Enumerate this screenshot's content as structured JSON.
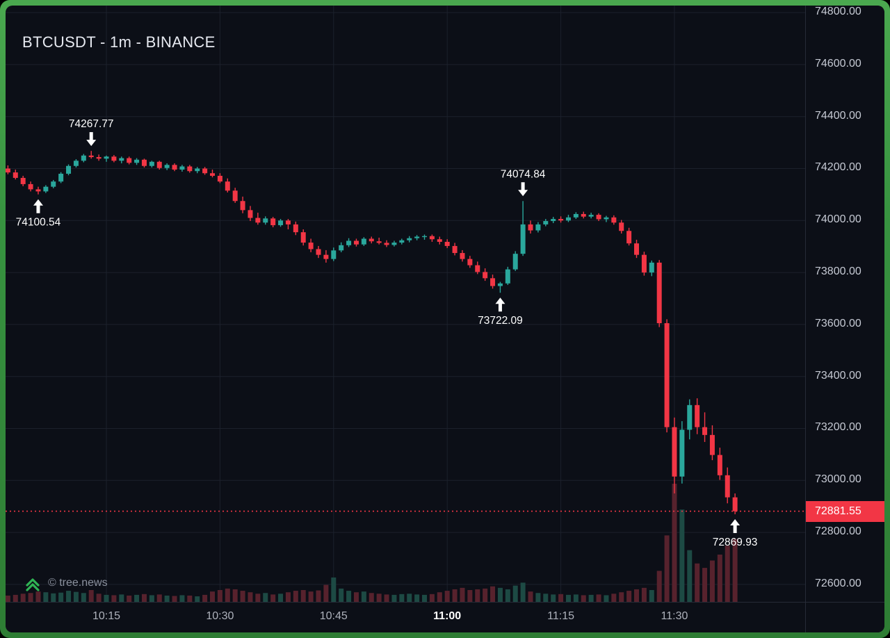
{
  "meta": {
    "title": "BTCUSDT - 1m - BINANCE"
  },
  "watermark": {
    "label": "© tree.news",
    "icon": "double-chevron-up-icon",
    "icon_color": "#2fb454"
  },
  "colors": {
    "up": "#2aa79c",
    "down": "#f23645",
    "bg": "#0c0f17",
    "grid": "#1c212c",
    "axis_text": "#c6cad4",
    "price_line": "#f23645",
    "annotation": "#ffffff",
    "volume_up": "#1d4a44",
    "volume_down": "#57222d",
    "badge_bg": "#f23645"
  },
  "price_axis": {
    "ticks": [
      "74800.00",
      "74600.00",
      "74400.00",
      "74200.00",
      "74000.00",
      "73800.00",
      "73600.00",
      "73400.00",
      "73200.00",
      "73000.00",
      "72800.00",
      "72600.00"
    ],
    "last_price_label": "72881.55"
  },
  "time_axis": {
    "ticks": [
      {
        "label": "10:15",
        "minute": 15,
        "emph": false
      },
      {
        "label": "10:30",
        "minute": 30,
        "emph": false
      },
      {
        "label": "10:45",
        "minute": 45,
        "emph": false
      },
      {
        "label": "11:00",
        "minute": 60,
        "emph": true
      },
      {
        "label": "11:15",
        "minute": 75,
        "emph": false
      },
      {
        "label": "11:30",
        "minute": 90,
        "emph": false
      }
    ]
  },
  "chart_data": {
    "type": "candlestick",
    "symbol": "BTCUSDT",
    "interval": "1m",
    "exchange": "BINANCE",
    "title": "BTCUSDT - 1m - BINANCE",
    "ylim": [
      72538,
      74827
    ],
    "grid": true,
    "last_price": 72881.55,
    "candles": [
      [
        "10:02",
        74200,
        74212,
        74178,
        74185,
        85
      ],
      [
        "10:03",
        74185,
        74196,
        74158,
        74164,
        95
      ],
      [
        "10:04",
        74164,
        74172,
        74132,
        74140,
        110
      ],
      [
        "10:05",
        74140,
        74150,
        74112,
        74120,
        120
      ],
      [
        "10:06",
        74120,
        74130,
        74100.54,
        74112,
        140
      ],
      [
        "10:07",
        74112,
        74136,
        74106,
        74130,
        130
      ],
      [
        "10:08",
        74130,
        74156,
        74124,
        74150,
        115
      ],
      [
        "10:09",
        74150,
        74186,
        74144,
        74180,
        125
      ],
      [
        "10:10",
        74180,
        74216,
        74174,
        74210,
        150
      ],
      [
        "10:11",
        74210,
        74236,
        74204,
        74230,
        135
      ],
      [
        "10:12",
        74230,
        74256,
        74224,
        74250,
        120
      ],
      [
        "10:13",
        74250,
        74267.77,
        74238,
        74244,
        160
      ],
      [
        "10:14",
        74244,
        74254,
        74230,
        74238,
        110
      ],
      [
        "10:15",
        74238,
        74250,
        74226,
        74246,
        95
      ],
      [
        "10:16",
        74246,
        74252,
        74224,
        74230,
        90
      ],
      [
        "10:17",
        74230,
        74246,
        74220,
        74240,
        100
      ],
      [
        "10:18",
        74240,
        74246,
        74216,
        74222,
        85
      ],
      [
        "10:19",
        74222,
        74240,
        74214,
        74234,
        95
      ],
      [
        "10:20",
        74234,
        74238,
        74204,
        74210,
        105
      ],
      [
        "10:21",
        74210,
        74230,
        74204,
        74226,
        90
      ],
      [
        "10:22",
        74226,
        74230,
        74196,
        74202,
        100
      ],
      [
        "10:23",
        74202,
        74220,
        74194,
        74214,
        85
      ],
      [
        "10:24",
        74214,
        74220,
        74190,
        74196,
        80
      ],
      [
        "10:25",
        74196,
        74214,
        74188,
        74208,
        90
      ],
      [
        "10:26",
        74208,
        74214,
        74184,
        74190,
        85
      ],
      [
        "10:27",
        74190,
        74206,
        74182,
        74200,
        75
      ],
      [
        "10:28",
        74200,
        74206,
        74176,
        74182,
        95
      ],
      [
        "10:29",
        74182,
        74196,
        74166,
        74172,
        140
      ],
      [
        "10:30",
        74172,
        74182,
        74144,
        74150,
        160
      ],
      [
        "10:31",
        74150,
        74162,
        74108,
        74115,
        180
      ],
      [
        "10:32",
        74115,
        74126,
        74068,
        74075,
        170
      ],
      [
        "10:33",
        74075,
        74092,
        74028,
        74040,
        150
      ],
      [
        "10:34",
        74040,
        74056,
        73998,
        74010,
        130
      ],
      [
        "10:35",
        74010,
        74030,
        73984,
        73992,
        110
      ],
      [
        "10:36",
        73992,
        74016,
        73984,
        74008,
        120
      ],
      [
        "10:37",
        74008,
        74014,
        73974,
        73982,
        100
      ],
      [
        "10:38",
        73982,
        74006,
        73976,
        74000,
        110
      ],
      [
        "10:39",
        74000,
        74006,
        73966,
        73985,
        130
      ],
      [
        "10:40",
        73985,
        73996,
        73944,
        73955,
        150
      ],
      [
        "10:41",
        73955,
        73966,
        73904,
        73915,
        160
      ],
      [
        "10:42",
        73915,
        73930,
        73878,
        73890,
        140
      ],
      [
        "10:43",
        73890,
        73902,
        73856,
        73868,
        155
      ],
      [
        "10:44",
        73868,
        73886,
        73838,
        73852,
        230
      ],
      [
        "10:45",
        73852,
        73896,
        73844,
        73885,
        330
      ],
      [
        "10:46",
        73885,
        73916,
        73878,
        73905,
        180
      ],
      [
        "10:47",
        73905,
        73932,
        73898,
        73922,
        150
      ],
      [
        "10:48",
        73922,
        73930,
        73900,
        73908,
        130
      ],
      [
        "10:49",
        73908,
        73936,
        73902,
        73930,
        140
      ],
      [
        "10:50",
        73930,
        73938,
        73912,
        73920,
        120
      ],
      [
        "10:51",
        73920,
        73934,
        73908,
        73914,
        110
      ],
      [
        "10:52",
        73914,
        73924,
        73898,
        73906,
        100
      ],
      [
        "10:53",
        73906,
        73922,
        73900,
        73915,
        95
      ],
      [
        "10:54",
        73915,
        73930,
        73908,
        73924,
        105
      ],
      [
        "10:55",
        73924,
        73940,
        73916,
        73932,
        110
      ],
      [
        "10:56",
        73932,
        73944,
        73924,
        73938,
        100
      ],
      [
        "10:57",
        73938,
        73946,
        73926,
        73940,
        95
      ],
      [
        "10:58",
        73940,
        73946,
        73918,
        73928,
        105
      ],
      [
        "10:59",
        73928,
        73938,
        73908,
        73918,
        130
      ],
      [
        "11:00",
        73918,
        73928,
        73894,
        73902,
        150
      ],
      [
        "11:01",
        73902,
        73914,
        73866,
        73875,
        170
      ],
      [
        "11:02",
        73875,
        73886,
        73842,
        73852,
        190
      ],
      [
        "11:03",
        73852,
        73864,
        73818,
        73828,
        160
      ],
      [
        "11:04",
        73828,
        73842,
        73794,
        73802,
        170
      ],
      [
        "11:05",
        73802,
        73816,
        73768,
        73778,
        180
      ],
      [
        "11:06",
        73778,
        73792,
        73738,
        73748,
        210
      ],
      [
        "11:07",
        73748,
        73764,
        73722.09,
        73758,
        190
      ],
      [
        "11:08",
        73758,
        73822,
        73752,
        73812,
        170
      ],
      [
        "11:09",
        73812,
        73882,
        73806,
        73872,
        220
      ],
      [
        "11:10",
        73872,
        74074.84,
        73864,
        73985,
        260
      ],
      [
        "11:11",
        73985,
        74000,
        73950,
        73962,
        140
      ],
      [
        "11:12",
        73962,
        73994,
        73954,
        73985,
        120
      ],
      [
        "11:13",
        73985,
        74006,
        73978,
        73998,
        110
      ],
      [
        "11:14",
        73998,
        74014,
        73990,
        74006,
        100
      ],
      [
        "11:15",
        74006,
        74016,
        73992,
        74000,
        105
      ],
      [
        "11:16",
        74000,
        74022,
        73994,
        74012,
        95
      ],
      [
        "11:17",
        74012,
        74032,
        74006,
        74025,
        100
      ],
      [
        "11:18",
        74025,
        74034,
        74008,
        74015,
        90
      ],
      [
        "11:19",
        74015,
        74030,
        74008,
        74022,
        95
      ],
      [
        "11:20",
        74022,
        74028,
        73998,
        74005,
        100
      ],
      [
        "11:21",
        74005,
        74018,
        73994,
        74012,
        90
      ],
      [
        "11:22",
        74012,
        74020,
        73984,
        73992,
        110
      ],
      [
        "11:23",
        73992,
        74002,
        73950,
        73960,
        130
      ],
      [
        "11:24",
        73960,
        73972,
        73904,
        73912,
        150
      ],
      [
        "11:25",
        73912,
        73926,
        73856,
        73868,
        170
      ],
      [
        "11:26",
        73868,
        73880,
        73788,
        73800,
        190
      ],
      [
        "11:27",
        73800,
        73846,
        73786,
        73838,
        160
      ],
      [
        "11:28",
        73838,
        73848,
        73590,
        73605,
        420
      ],
      [
        "11:29",
        73605,
        73620,
        73185,
        73205,
        900
      ],
      [
        "11:30",
        73205,
        73242,
        72950,
        73015,
        1600
      ],
      [
        "11:31",
        73015,
        73228,
        72988,
        73195,
        1250
      ],
      [
        "11:32",
        73195,
        73312,
        73158,
        73290,
        700
      ],
      [
        "11:33",
        73290,
        73316,
        73178,
        73205,
        520
      ],
      [
        "11:34",
        73205,
        73262,
        73148,
        73175,
        460
      ],
      [
        "11:35",
        73175,
        73212,
        73078,
        73098,
        560
      ],
      [
        "11:36",
        73098,
        73126,
        73002,
        73020,
        640
      ],
      [
        "11:37",
        73020,
        73050,
        72912,
        72935,
        760
      ],
      [
        "11:38",
        72935,
        72950,
        72869.93,
        72881.55,
        850
      ]
    ],
    "annotations": [
      {
        "text": "74100.54",
        "time": "10:06",
        "dir": "up"
      },
      {
        "text": "74267.77",
        "time": "10:13",
        "dir": "down"
      },
      {
        "text": "73722.09",
        "time": "11:07",
        "dir": "up"
      },
      {
        "text": "74074.84",
        "time": "11:10",
        "dir": "down"
      },
      {
        "text": "72869.93",
        "time": "11:38",
        "dir": "up"
      }
    ]
  }
}
